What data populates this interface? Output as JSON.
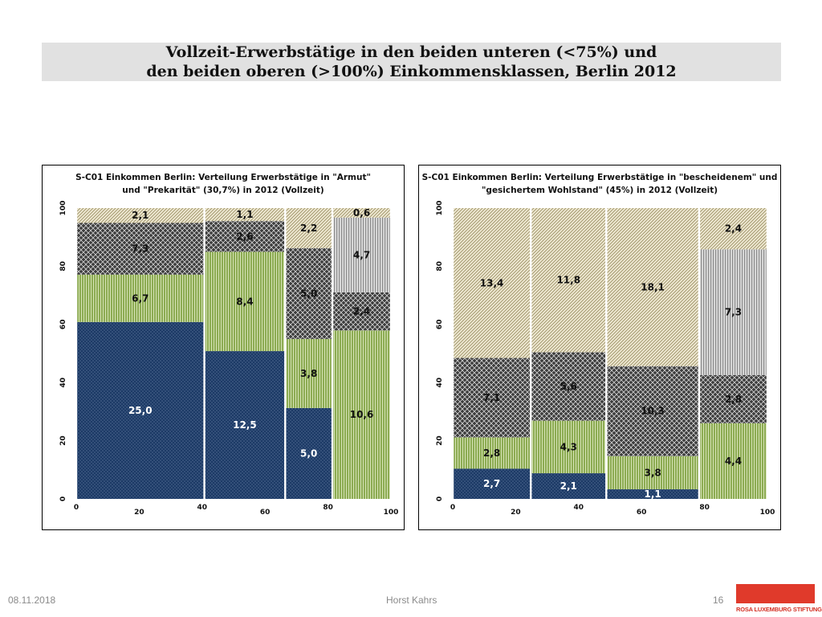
{
  "slide": {
    "title_line1": "Vollzeit-Erwerbstätige in den beiden unteren (<75%) und",
    "title_line2": "den beiden oberen (>100%) Einkommensklassen, Berlin 2012",
    "footer_date": "08.11.2018",
    "footer_author": "Horst Kahrs",
    "page_number": "16",
    "logo_text": "ROSA LUXEMBURG STIFTUNG"
  },
  "colors": {
    "navy": "#1c3a66",
    "green": "#8cab52",
    "dark_gray": "#3c3c3c",
    "beige": "#d8cfa8",
    "light_gray": "#b4b4b4",
    "logo_red": "#e03a2b"
  },
  "chart_data": [
    {
      "type": "mosaic",
      "title_line1": "S-C01 Einkommen Berlin: Verteilung Erwerbstätige in \"Armut\"",
      "title_line2": "und \"Prekarität\" (30,7%) in 2012 (Vollzeit)",
      "x_ticks": [
        "0",
        "20",
        "40",
        "60",
        "80",
        "100"
      ],
      "y_ticks": [
        "0",
        "20",
        "40",
        "60",
        "80",
        "100"
      ],
      "xlim": [
        0,
        100
      ],
      "ylim": [
        0,
        100
      ],
      "columns": [
        {
          "x_start": 0,
          "width": 40.7,
          "segments": [
            {
              "value": 25.0,
              "label": "25,0",
              "color": "navy"
            },
            {
              "value": 6.7,
              "label": "6,7",
              "color": "green"
            },
            {
              "value": 7.3,
              "label": "7,3",
              "color": "dark_gray"
            },
            {
              "value": 2.1,
              "label": "2,1",
              "color": "beige"
            }
          ]
        },
        {
          "x_start": 40.7,
          "width": 25.7,
          "segments": [
            {
              "value": 12.5,
              "label": "12,5",
              "color": "navy"
            },
            {
              "value": 8.4,
              "label": "8,4",
              "color": "green"
            },
            {
              "value": 2.6,
              "label": "2,6",
              "color": "dark_gray"
            },
            {
              "value": 1.1,
              "label": "1,1",
              "color": "beige"
            }
          ]
        },
        {
          "x_start": 66.4,
          "width": 15.0,
          "segments": [
            {
              "value": 5.0,
              "label": "5,0",
              "color": "navy"
            },
            {
              "value": 3.8,
              "label": "3,8",
              "color": "green"
            },
            {
              "value": 5.0,
              "label": "5,0",
              "color": "dark_gray"
            },
            {
              "value": 2.2,
              "label": "2,2",
              "color": "beige"
            }
          ]
        },
        {
          "x_start": 81.4,
          "width": 18.6,
          "segments": [
            {
              "value": 10.6,
              "label": "10,6",
              "color": "green"
            },
            {
              "value": 2.4,
              "label": "2,4",
              "color": "dark_gray"
            },
            {
              "value": 4.7,
              "label": "4,7",
              "color": "light_gray"
            },
            {
              "value": 0.6,
              "label": "0,6",
              "color": "beige"
            }
          ]
        }
      ]
    },
    {
      "type": "mosaic",
      "title_line1": "S-C01 Einkommen Berlin: Verteilung Erwerbstätige in \"bescheidenem\" und",
      "title_line2": "\"gesichertem Wohlstand\" (45%) in 2012 (Vollzeit)",
      "x_ticks": [
        "0",
        "20",
        "40",
        "60",
        "80",
        "100"
      ],
      "y_ticks": [
        "0",
        "20",
        "40",
        "60",
        "80",
        "100"
      ],
      "xlim": [
        0,
        100
      ],
      "ylim": [
        0,
        100
      ],
      "columns": [
        {
          "x_start": 0,
          "width": 24.8,
          "segments": [
            {
              "value": 2.7,
              "label": "2,7",
              "color": "navy"
            },
            {
              "value": 2.8,
              "label": "2,8",
              "color": "green"
            },
            {
              "value": 7.1,
              "label": "7,1",
              "color": "dark_gray"
            },
            {
              "value": 13.4,
              "label": "13,4",
              "color": "beige"
            }
          ]
        },
        {
          "x_start": 24.8,
          "width": 24.0,
          "segments": [
            {
              "value": 2.1,
              "label": "2,1",
              "color": "navy"
            },
            {
              "value": 4.3,
              "label": "4,3",
              "color": "green"
            },
            {
              "value": 5.6,
              "label": "5,6",
              "color": "dark_gray"
            },
            {
              "value": 11.8,
              "label": "11,8",
              "color": "beige"
            }
          ]
        },
        {
          "x_start": 48.8,
          "width": 29.5,
          "segments": [
            {
              "value": 1.1,
              "label": "1,1",
              "color": "navy"
            },
            {
              "value": 3.8,
              "label": "3,8",
              "color": "green"
            },
            {
              "value": 10.3,
              "label": "10,3",
              "color": "dark_gray"
            },
            {
              "value": 18.1,
              "label": "18,1",
              "color": "beige"
            }
          ]
        },
        {
          "x_start": 78.3,
          "width": 21.7,
          "segments": [
            {
              "value": 4.4,
              "label": "4,4",
              "color": "green"
            },
            {
              "value": 2.8,
              "label": "2,8",
              "color": "dark_gray"
            },
            {
              "value": 7.3,
              "label": "7,3",
              "color": "light_gray"
            },
            {
              "value": 2.4,
              "label": "2,4",
              "color": "beige"
            }
          ]
        }
      ]
    }
  ]
}
